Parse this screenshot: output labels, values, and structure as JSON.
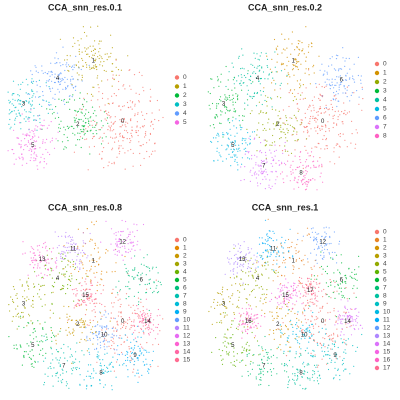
{
  "chart_data": [
    {
      "type": "scatter",
      "title": "CCA_snn_res.0.1",
      "categories": [
        "0",
        "1",
        "2",
        "3",
        "4",
        "5"
      ],
      "colors": [
        "#F8766D",
        "#B79F00",
        "#00BA38",
        "#00BFC4",
        "#619CFF",
        "#F564E3"
      ]
    },
    {
      "type": "scatter",
      "title": "CCA_snn_res.0.2",
      "categories": [
        "0",
        "1",
        "2",
        "3",
        "4",
        "5",
        "6",
        "7",
        "8"
      ],
      "colors": [
        "#F8766D",
        "#D39200",
        "#93AA00",
        "#00BA38",
        "#00C19F",
        "#00B9E3",
        "#619CFF",
        "#DB72FB",
        "#FF61C3"
      ]
    },
    {
      "type": "scatter",
      "title": "CCA_snn_res.0.8",
      "categories": [
        "0",
        "1",
        "2",
        "3",
        "4",
        "5",
        "6",
        "7",
        "8",
        "9",
        "10",
        "11",
        "12",
        "13",
        "14",
        "15"
      ],
      "colors": [
        "#F8766D",
        "#E58700",
        "#C99800",
        "#A3A500",
        "#6BB100",
        "#00BA38",
        "#00BF7D",
        "#00C0AF",
        "#00BCD8",
        "#00B0F6",
        "#619CFF",
        "#B983FF",
        "#E76BF3",
        "#FD61D1",
        "#FF67A4",
        "#FF6C91"
      ]
    },
    {
      "type": "scatter",
      "title": "CCA_snn_res.1",
      "categories": [
        "0",
        "1",
        "2",
        "3",
        "4",
        "5",
        "6",
        "7",
        "8",
        "9",
        "10",
        "11",
        "12",
        "13",
        "14",
        "15",
        "16",
        "17"
      ],
      "colors": [
        "#F8766D",
        "#E88526",
        "#D39200",
        "#B79F00",
        "#93AA00",
        "#5EB300",
        "#00BA38",
        "#00BF74",
        "#00C19F",
        "#00BFC4",
        "#00B9E3",
        "#00ADFA",
        "#619CFF",
        "#AE87FF",
        "#DB72FB",
        "#F564E3",
        "#FF61C3",
        "#FF6C91"
      ]
    }
  ]
}
